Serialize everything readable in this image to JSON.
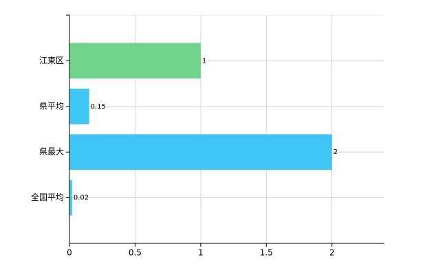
{
  "chart_data": {
    "type": "hbar",
    "categories": [
      "江東区",
      "県平均",
      "県最大",
      "全国平均"
    ],
    "values": [
      1,
      0.15,
      2,
      0.02
    ],
    "colors": [
      "#6fd38b",
      "#3fc5f6",
      "#3fc5f6",
      "#3fc5f6"
    ],
    "xlim": [
      0,
      2.4
    ],
    "xticks": [
      0,
      0.5,
      1,
      1.5,
      2
    ],
    "grid": true
  }
}
